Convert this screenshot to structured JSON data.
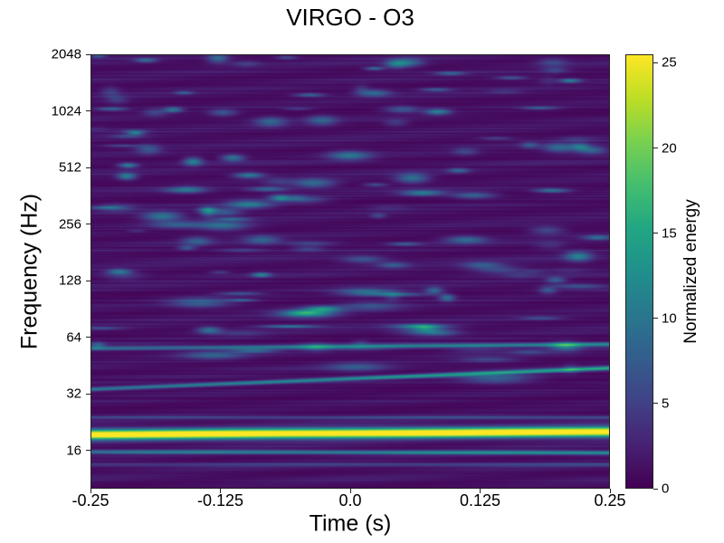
{
  "chart_data": {
    "type": "heatmap",
    "title": "VIRGO - O3",
    "xlabel": "Time (s)",
    "ylabel": "Frequency (Hz)",
    "colorbar_label": "Normalized energy",
    "xlim": [
      -0.25,
      0.25
    ],
    "ylim": [
      10,
      2048
    ],
    "yscale": "log2",
    "x_ticks": [
      "-0.25",
      "-0.125",
      "0.0",
      "0.125",
      "0.25"
    ],
    "x_tick_values": [
      -0.25,
      -0.125,
      0.0,
      0.125,
      0.25
    ],
    "y_ticks": [
      "16",
      "32",
      "64",
      "128",
      "256",
      "512",
      "1024",
      "2048"
    ],
    "y_tick_values": [
      16,
      32,
      64,
      128,
      256,
      512,
      1024,
      2048
    ],
    "colorbar_ticks": [
      "0",
      "5",
      "10",
      "15",
      "20",
      "25"
    ],
    "colorbar_tick_values": [
      0,
      5,
      10,
      15,
      20,
      25
    ],
    "colorbar_range": [
      0,
      25.5
    ],
    "colormap": "viridis",
    "features": [
      {
        "kind": "line",
        "freq_start": 19.5,
        "freq_end": 20.2,
        "energy": 25
      },
      {
        "kind": "line",
        "freq_start": 15.8,
        "freq_end": 15.6,
        "energy": 12
      },
      {
        "kind": "line",
        "freq_start": 34,
        "freq_end": 44,
        "energy": 14
      },
      {
        "kind": "line",
        "freq_start": 56,
        "freq_end": 59,
        "energy": 11
      },
      {
        "kind": "line",
        "freq_start": 13.5,
        "freq_end": 13.5,
        "energy": 5
      },
      {
        "kind": "line",
        "freq_start": 24,
        "freq_end": 24,
        "energy": 5
      }
    ]
  }
}
